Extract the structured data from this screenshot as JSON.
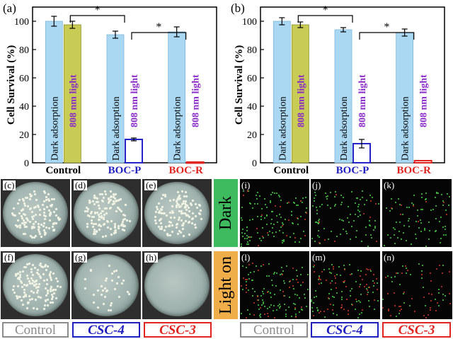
{
  "chart_data": [
    {
      "panel": "(a)",
      "type": "bar",
      "ylabel": "Cell Survival (%)",
      "ylim": [
        0,
        110
      ],
      "yticks": [
        0,
        20,
        40,
        60,
        80,
        100
      ],
      "categories": [
        "Control",
        "BOC-P",
        "BOC-R"
      ],
      "category_colors": [
        "#000000",
        "#1f1fbf",
        "#e0241f"
      ],
      "series": [
        {
          "name": "Dark adsorption",
          "values": [
            100,
            90.5,
            92.5
          ],
          "errors": [
            3.5,
            2.5,
            3.5
          ],
          "color": "#aad8f2"
        },
        {
          "name": "808 nm light",
          "values": [
            97.5,
            16.5,
            0.5
          ],
          "errors": [
            2.5,
            1.0,
            0.3
          ],
          "color_fill": [
            "#c8cc55",
            "#ffffff",
            "#ffffff"
          ],
          "color_edge": [
            "#8a8f2a",
            "#2424c8",
            "#e0241f"
          ]
        }
      ],
      "significance": [
        {
          "from": "Control",
          "to": "BOC-P",
          "label": "*"
        },
        {
          "from": "BOC-P",
          "to": "BOC-R",
          "label": "*"
        }
      ]
    },
    {
      "panel": "(b)",
      "type": "bar",
      "ylabel": "Cell Survival (%)",
      "ylim": [
        0,
        110
      ],
      "yticks": [
        0,
        20,
        40,
        60,
        80,
        100
      ],
      "categories": [
        "Control",
        "BOC-P",
        "BOC-R"
      ],
      "category_colors": [
        "#000000",
        "#1f1fbf",
        "#e0241f"
      ],
      "series": [
        {
          "name": "Dark adsorption",
          "values": [
            100,
            94,
            92
          ],
          "errors": [
            2.5,
            1.5,
            2.5
          ],
          "color": "#aad8f2"
        },
        {
          "name": "808 nm light",
          "values": [
            97.5,
            13.5,
            1.5
          ],
          "errors": [
            2.0,
            3.0,
            0.3
          ],
          "color_fill": [
            "#c8cc55",
            "#ffffff",
            "#ffffff"
          ],
          "color_edge": [
            "#8a8f2a",
            "#2424c8",
            "#e0241f"
          ]
        }
      ],
      "significance": [
        {
          "from": "Control",
          "to": "BOC-P",
          "label": "*"
        },
        {
          "from": "BOC-P",
          "to": "BOC-R",
          "label": "*"
        }
      ]
    }
  ],
  "plates": {
    "labels": [
      "(c)",
      "(d)",
      "(e)",
      "(f)",
      "(g)",
      "(h)"
    ],
    "colony_density": [
      "high",
      "high",
      "high",
      "high",
      "low",
      "none"
    ]
  },
  "fluorescence": {
    "labels": [
      "(i)",
      "(j)",
      "(k)",
      "(l)",
      "(m)",
      "(n)"
    ],
    "row_labels": [
      "Dark",
      "Light on"
    ],
    "row_label_colors": [
      "#3dbb5e",
      "#f0ae4b"
    ]
  },
  "bottom_labels": {
    "left": [
      "Control",
      "CSC-4",
      "CSC-3"
    ],
    "right": [
      "Control",
      "CSC-4",
      "CSC-3"
    ],
    "colors": [
      "#8c8c8c",
      "#1f1fbf",
      "#e0241f"
    ]
  }
}
